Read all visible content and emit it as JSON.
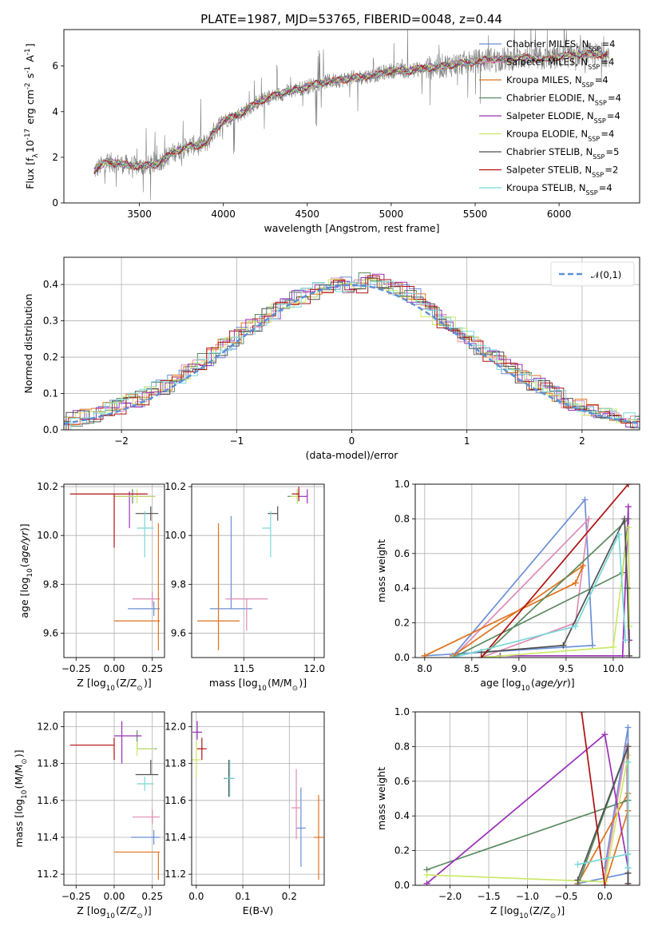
{
  "colors": {
    "chabrier_miles": "#6a8fd8",
    "salpeter_miles": "#e08cb4",
    "kroupa_miles": "#e0721c",
    "chabrier_elodie": "#5a8a60",
    "salpeter_elodie": "#9b30b8",
    "kroupa_elodie": "#cce868",
    "chabrier_stelib": "#505050",
    "salpeter_stelib": "#b01010",
    "kroupa_stelib": "#78d8d8",
    "data_gray": "#7f7f7f",
    "gauss": "#5b8fd6",
    "grid": "#b0b0b0"
  },
  "chart_data": [
    {
      "id": "spectrum",
      "type": "line",
      "title": "PLATE=1987, MJD=53765, FIBERID=0048, z=0.44",
      "xlabel": "wavelength [Angstrom, rest frame]",
      "ylabel": "Flux [f$_\\lambda$10$^{-17}$ erg cm$^{-2}$ s$^{-1}$ A$^{-1}$]",
      "xlim": [
        3050,
        6480
      ],
      "ylim": [
        0,
        7.6
      ],
      "xticks": [
        3500,
        4000,
        4500,
        5000,
        5500,
        6000
      ],
      "yticks": [
        0,
        2,
        4,
        6
      ],
      "grid": false,
      "legend_position": "right",
      "legend": [
        "Chabrier MILES, N$_{SSP}$=4",
        "Salpeter MILES, N$_{SSP}$=4",
        "Kroupa MILES, N$_{SSP}$=4",
        "Chabrier ELODIE, N$_{SSP}$=4",
        "Salpeter ELODIE, N$_{SSP}$=4",
        "Kroupa ELODIE, N$_{SSP}$=4",
        "Chabrier STELIB, N$_{SSP}$=5",
        "Salpeter STELIB, N$_{SSP}$=2",
        "Kroupa STELIB, N$_{SSP}$=4"
      ],
      "continuum": {
        "x": [
          3230,
          3300,
          3400,
          3500,
          3600,
          3700,
          3800,
          3900,
          3950,
          4000,
          4100,
          4200,
          4300,
          4400,
          4500,
          4600,
          4700,
          4800,
          4900,
          5000,
          5100,
          5200,
          5300,
          5400,
          5500,
          5600,
          5700,
          5800,
          5900,
          6000,
          6100,
          6200,
          6300
        ],
        "y": [
          1.4,
          1.8,
          1.7,
          1.6,
          1.7,
          2.2,
          2.5,
          2.6,
          3.2,
          3.6,
          3.9,
          4.4,
          4.7,
          4.9,
          5.1,
          5.3,
          5.4,
          5.5,
          5.6,
          5.8,
          5.8,
          5.9,
          6.0,
          6.1,
          6.2,
          6.3,
          6.3,
          6.4,
          6.3,
          6.4,
          6.5,
          6.5,
          6.5
        ]
      }
    },
    {
      "id": "residuals",
      "type": "histogram",
      "xlabel": "(data-model)/error",
      "ylabel": "Normed distribution",
      "xlim": [
        -2.5,
        2.5
      ],
      "ylim": [
        0,
        0.475
      ],
      "xticks": [
        -2,
        -1,
        0,
        1,
        2
      ],
      "yticks": [
        0.0,
        0.1,
        0.2,
        0.3,
        0.4
      ],
      "grid": true,
      "legend_position": "top-right",
      "legend": [
        "$\\mathcal{N}(0,1)$"
      ],
      "bin_width": 0.1
    },
    {
      "id": "age-vs-Z",
      "type": "scatter",
      "xlabel": "Z [log$_{10}$(Z/Z$_\\odot$)]",
      "ylabel": "age  [log$_{10}$($age/yr$)]",
      "xlim": [
        -0.33,
        0.33
      ],
      "ylim": [
        9.5,
        10.21
      ],
      "xticks": [
        -0.25,
        0.0,
        0.25
      ],
      "yticks": [
        9.6,
        9.8,
        10.0,
        10.2
      ],
      "grid": true,
      "points": [
        {
          "model": "chabrier_miles",
          "x": 0.26,
          "y": 9.7,
          "xerr": [
            0.17,
            0.04
          ],
          "yerr": [
            0.0,
            0.0
          ]
        },
        {
          "model": "salpeter_miles",
          "x": 0.25,
          "y": 9.74,
          "xerr": [
            0.13,
            0.05
          ],
          "yerr": [
            0.0,
            0.0
          ]
        },
        {
          "model": "kroupa_miles",
          "x": 0.29,
          "y": 9.65,
          "xerr": [
            0.29,
            0.01
          ],
          "yerr": [
            0.12,
            0.4
          ]
        },
        {
          "model": "chabrier_elodie",
          "x": 0.12,
          "y": 10.16,
          "xerr": [
            0.12,
            0.13
          ],
          "yerr": [
            0.0,
            0.0
          ]
        },
        {
          "model": "salpeter_elodie",
          "x": 0.1,
          "y": 10.16,
          "xerr": [
            0.1,
            0.17
          ],
          "yerr": [
            0.13,
            0.02
          ]
        },
        {
          "model": "kroupa_elodie",
          "x": 0.15,
          "y": 10.16,
          "xerr": [
            0.15,
            0.12
          ],
          "yerr": [
            0.0,
            0.0
          ]
        },
        {
          "model": "chabrier_stelib",
          "x": 0.24,
          "y": 10.09,
          "xerr": [
            0.1,
            0.05
          ],
          "yerr": [
            0.0,
            0.0
          ]
        },
        {
          "model": "salpeter_stelib",
          "x": 0.0,
          "y": 10.17,
          "xerr": [
            0.29,
            0.22
          ],
          "yerr": [
            0.22,
            0.0
          ]
        },
        {
          "model": "kroupa_stelib",
          "x": 0.2,
          "y": 10.03,
          "xerr": [
            0.05,
            0.06
          ],
          "yerr": [
            0.12,
            0.07
          ]
        }
      ]
    },
    {
      "id": "age-vs-mass",
      "type": "scatter",
      "xlabel": "mass [log$_{10}$(M/M$_\\odot$)]",
      "ylabel": "",
      "xlim": [
        11.13,
        12.07
      ],
      "ylim": [
        9.5,
        10.21
      ],
      "xticks": [
        11.5,
        12.0
      ],
      "yticks": [
        9.6,
        9.8,
        10.0,
        10.2
      ],
      "grid": true,
      "points": [
        {
          "model": "chabrier_miles",
          "x": 11.41,
          "y": 9.7,
          "xerr": [
            0.15,
            0.15
          ],
          "yerr": [
            0.0,
            0.38
          ]
        },
        {
          "model": "salpeter_miles",
          "x": 11.52,
          "y": 9.74,
          "xerr": [
            0.15,
            0.15
          ],
          "yerr": [
            0.13,
            0.0
          ]
        },
        {
          "model": "kroupa_miles",
          "x": 11.32,
          "y": 9.65,
          "xerr": [
            0.15,
            0.15
          ],
          "yerr": [
            0.12,
            0.4
          ]
        },
        {
          "model": "chabrier_elodie",
          "x": 11.88,
          "y": 10.16,
          "xerr": [
            0.07,
            0.0
          ],
          "yerr": [
            0.0,
            0.0
          ]
        },
        {
          "model": "salpeter_elodie",
          "x": 11.95,
          "y": 10.16,
          "xerr": [
            0.07,
            0.0
          ],
          "yerr": [
            0.0,
            0.0
          ]
        },
        {
          "model": "kroupa_elodie",
          "x": 11.88,
          "y": 10.16,
          "xerr": [
            0.05,
            0.0
          ],
          "yerr": [
            0.0,
            0.0
          ]
        },
        {
          "model": "chabrier_stelib",
          "x": 11.74,
          "y": 10.09,
          "xerr": [
            0.07,
            0.0
          ],
          "yerr": [
            0.0,
            0.0
          ]
        },
        {
          "model": "salpeter_stelib",
          "x": 11.89,
          "y": 10.17,
          "xerr": [
            0.05,
            0.0
          ],
          "yerr": [
            0.0,
            0.0
          ]
        },
        {
          "model": "kroupa_stelib",
          "x": 11.69,
          "y": 10.03,
          "xerr": [
            0.06,
            0.0
          ],
          "yerr": [
            0.12,
            0.07
          ]
        }
      ]
    },
    {
      "id": "weight-vs-age",
      "type": "line",
      "xlabel": "age  [log$_{10}$($age/yr$)]",
      "ylabel": "mass weight",
      "xlim": [
        7.9,
        10.28
      ],
      "ylim": [
        0,
        1.0
      ],
      "xticks": [
        8.0,
        8.5,
        9.0,
        9.5,
        10.0
      ],
      "yticks": [
        0.0,
        0.2,
        0.4,
        0.6,
        0.8,
        1.0
      ],
      "grid": true,
      "series": [
        {
          "model": "chabrier_miles",
          "x": [
            8.3,
            9.7,
            9.78,
            8.0
          ],
          "y": [
            0.01,
            0.91,
            0.07,
            0.01
          ]
        },
        {
          "model": "salpeter_miles",
          "x": [
            8.6,
            9.6,
            9.74,
            8.3
          ],
          "y": [
            0.0,
            0.2,
            0.8,
            0.0
          ]
        },
        {
          "model": "kroupa_miles",
          "x": [
            8.0,
            9.6,
            9.68,
            8.3
          ],
          "y": [
            0.01,
            0.43,
            0.53,
            0.01
          ]
        },
        {
          "model": "chabrier_elodie",
          "x": [
            8.3,
            10.1,
            10.16,
            8.6
          ],
          "y": [
            0.0,
            0.49,
            0.8,
            0.0
          ]
        },
        {
          "model": "salpeter_elodie",
          "x": [
            8.8,
            10.1,
            10.16,
            10.17
          ],
          "y": [
            0.01,
            0.01,
            0.87,
            0.1
          ]
        },
        {
          "model": "kroupa_elodie",
          "x": [
            8.6,
            10.0,
            10.16,
            10.17
          ],
          "y": [
            0.0,
            0.06,
            0.75,
            0.18
          ]
        },
        {
          "model": "chabrier_stelib",
          "x": [
            8.6,
            9.47,
            10.12,
            10.15,
            10.17
          ],
          "y": [
            0.03,
            0.07,
            0.8,
            0.4,
            0.01
          ]
        },
        {
          "model": "salpeter_stelib",
          "x": [
            8.6,
            10.16
          ],
          "y": [
            0.0,
            1.0
          ]
        },
        {
          "model": "kroupa_stelib",
          "x": [
            8.3,
            9.6,
            10.06,
            10.13
          ],
          "y": [
            0.0,
            0.18,
            0.71,
            0.1
          ]
        }
      ]
    },
    {
      "id": "mass-vs-Z",
      "type": "scatter",
      "xlabel": "Z [log$_{10}$(Z/Z$_\\odot$)]",
      "ylabel": "mass [log$_{10}$(M/M$_\\odot$)]",
      "xlim": [
        -0.33,
        0.33
      ],
      "ylim": [
        11.14,
        12.08
      ],
      "xticks": [
        -0.25,
        0.0,
        0.25
      ],
      "yticks": [
        11.2,
        11.4,
        11.6,
        11.8,
        12.0
      ],
      "grid": true,
      "points": [
        {
          "model": "chabrier_miles",
          "x": 0.26,
          "y": 11.4,
          "xerr": [
            0.15,
            0.04
          ],
          "yerr": [
            0.0,
            0.0
          ]
        },
        {
          "model": "salpeter_miles",
          "x": 0.25,
          "y": 11.51,
          "xerr": [
            0.13,
            0.05
          ],
          "yerr": [
            0.0,
            0.0
          ]
        },
        {
          "model": "kroupa_miles",
          "x": 0.29,
          "y": 11.32,
          "xerr": [
            0.29,
            0.01
          ],
          "yerr": [
            0.15,
            0.0
          ]
        },
        {
          "model": "chabrier_elodie",
          "x": 0.15,
          "y": 11.88,
          "xerr": [
            0.0,
            0.13
          ],
          "yerr": [
            0.0,
            0.1
          ]
        },
        {
          "model": "salpeter_elodie",
          "x": 0.05,
          "y": 11.95,
          "xerr": [
            0.05,
            0.13
          ],
          "yerr": [
            0.15,
            0.08
          ]
        },
        {
          "model": "kroupa_elodie",
          "x": 0.15,
          "y": 11.88,
          "xerr": [
            0.0,
            0.12
          ],
          "yerr": [
            0.0,
            0.0
          ]
        },
        {
          "model": "chabrier_stelib",
          "x": 0.24,
          "y": 11.74,
          "xerr": [
            0.1,
            0.05
          ],
          "yerr": [
            0.0,
            0.08
          ]
        },
        {
          "model": "salpeter_stelib",
          "x": 0.0,
          "y": 11.9,
          "xerr": [
            0.29,
            0.0
          ],
          "yerr": [
            0.08,
            0.04
          ]
        },
        {
          "model": "kroupa_stelib",
          "x": 0.2,
          "y": 11.69,
          "xerr": [
            0.05,
            0.06
          ],
          "yerr": [
            0.0,
            0.0
          ]
        }
      ]
    },
    {
      "id": "mass-vs-ebv",
      "type": "scatter",
      "xlabel": "E(B-V)",
      "ylabel": "",
      "xlim": [
        -0.01,
        0.275
      ],
      "ylim": [
        11.14,
        12.08
      ],
      "xticks": [
        0.0,
        0.1,
        0.2
      ],
      "yticks": [
        11.2,
        11.4,
        11.6,
        11.8,
        12.0
      ],
      "grid": true,
      "points": [
        {
          "model": "chabrier_miles",
          "x": 0.225,
          "y": 11.45,
          "xerr": [
            0,
            0
          ],
          "yerr": [
            0.21,
            0.22
          ]
        },
        {
          "model": "salpeter_miles",
          "x": 0.215,
          "y": 11.56,
          "xerr": [
            0,
            0
          ],
          "yerr": [
            0.17,
            0.21
          ]
        },
        {
          "model": "kroupa_miles",
          "x": 0.263,
          "y": 11.4,
          "xerr": [
            0,
            0
          ],
          "yerr": [
            0.23,
            0.23
          ]
        },
        {
          "model": "chabrier_elodie",
          "x": 0.07,
          "y": 11.72,
          "xerr": [
            0,
            0
          ],
          "yerr": [
            0.1,
            0.1
          ]
        },
        {
          "model": "salpeter_elodie",
          "x": 0.002,
          "y": 11.97,
          "xerr": [
            0,
            0
          ],
          "yerr": [
            0.04,
            0.06
          ]
        },
        {
          "model": "kroupa_elodie",
          "x": 0.0,
          "y": 11.82,
          "xerr": [
            0,
            0
          ],
          "yerr": [
            0.1,
            0.1
          ]
        },
        {
          "model": "chabrier_stelib",
          "x": 0.07,
          "y": 11.72,
          "xerr": [
            0,
            0
          ],
          "yerr": [
            0.1,
            0.1
          ]
        },
        {
          "model": "salpeter_stelib",
          "x": 0.012,
          "y": 11.88,
          "xerr": [
            0,
            0
          ],
          "yerr": [
            0.06,
            0.06
          ]
        },
        {
          "model": "kroupa_stelib",
          "x": 0.072,
          "y": 11.72,
          "xerr": [
            0,
            0
          ],
          "yerr": [
            0.1,
            0.1
          ]
        }
      ]
    },
    {
      "id": "weight-vs-Z",
      "type": "line",
      "xlabel": "Z [log$_{10}$(Z/Z$_\\odot$)]",
      "ylabel": "mass weight",
      "xlim": [
        -2.45,
        0.45
      ],
      "ylim": [
        0,
        1.0
      ],
      "xticks": [
        -2.0,
        -1.5,
        -1.0,
        -0.5,
        0.0
      ],
      "yticks": [
        0.0,
        0.2,
        0.4,
        0.6,
        0.8,
        1.0
      ],
      "grid": true,
      "series": [
        {
          "model": "chabrier_miles",
          "x": [
            0.0,
            0.3,
            0.3,
            -0.35
          ],
          "y": [
            0.1,
            0.91,
            0.07,
            0.01
          ]
        },
        {
          "model": "salpeter_miles",
          "x": [
            0.0,
            0.28,
            0.3
          ],
          "y": [
            0.06,
            0.8,
            0.0
          ]
        },
        {
          "model": "kroupa_miles",
          "x": [
            -0.35,
            0.3,
            0.3,
            0.0
          ],
          "y": [
            0.01,
            0.53,
            0.43,
            0.0
          ]
        },
        {
          "model": "chabrier_elodie",
          "x": [
            -2.3,
            0.3,
            0.3,
            -0.35
          ],
          "y": [
            0.09,
            0.49,
            0.8,
            0.0
          ]
        },
        {
          "model": "salpeter_elodie",
          "x": [
            -2.3,
            0.0,
            0.3,
            0.3
          ],
          "y": [
            0.01,
            0.87,
            0.1,
            0.01
          ]
        },
        {
          "model": "kroupa_elodie",
          "x": [
            -2.3,
            0.0,
            0.3,
            0.3
          ],
          "y": [
            0.06,
            0.02,
            0.75,
            0.18
          ]
        },
        {
          "model": "chabrier_stelib",
          "x": [
            -0.35,
            0.3,
            0.3,
            0.3
          ],
          "y": [
            0.03,
            0.8,
            0.07,
            0.01
          ]
        },
        {
          "model": "salpeter_stelib",
          "x": [
            -0.3,
            0.0
          ],
          "y": [
            1.0,
            0.0
          ]
        },
        {
          "model": "kroupa_stelib",
          "x": [
            -0.35,
            0.3,
            0.3,
            0.3
          ],
          "y": [
            0.12,
            0.18,
            0.71,
            0.1
          ]
        }
      ]
    }
  ]
}
